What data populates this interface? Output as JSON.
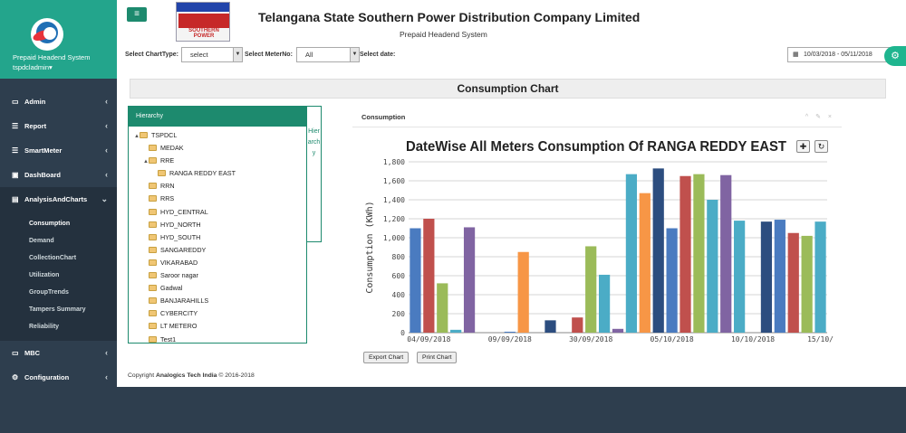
{
  "sidebar": {
    "system_name": "Prepaid Headend System",
    "user": "tspdcladmin",
    "menu": [
      {
        "label": "Admin",
        "icon": "monitor-icon"
      },
      {
        "label": "Report",
        "icon": "list-icon"
      },
      {
        "label": "SmartMeter",
        "icon": "list-icon"
      },
      {
        "label": "DashBoard",
        "icon": "dashboard-icon"
      },
      {
        "label": "AnalysisAndCharts",
        "icon": "bar-chart-icon"
      }
    ],
    "submenu": [
      "Consumption",
      "Demand",
      "CollectionChart",
      "Utilization",
      "GroupTrends",
      "Tampers Summary",
      "Reliability"
    ],
    "menu_after": [
      {
        "label": "MBC",
        "icon": "monitor-icon"
      },
      {
        "label": "Configuration",
        "icon": "gear-icon"
      }
    ]
  },
  "header": {
    "company": "Telangana State Southern Power Distribution Company Limited",
    "subtitle": "Prepaid Headend System",
    "logo_text": "SOUTHERN POWER"
  },
  "filters": {
    "chart_type_label": "Select ChartType:",
    "chart_type_value": "select",
    "meter_label": "Select MeterNo:",
    "meter_value": "All",
    "date_label": "Select date:",
    "date_value": "10/03/2018 - 05/11/2018"
  },
  "page_title": "Consumption Chart",
  "hierarchy": {
    "title": "Hierarchy",
    "tab_label": "Hierarchy",
    "nodes": [
      {
        "label": "TSPDCL",
        "level": 0,
        "toggle": "▲"
      },
      {
        "label": "MEDAK",
        "level": 1,
        "toggle": ""
      },
      {
        "label": "RRE",
        "level": 1,
        "toggle": "▲"
      },
      {
        "label": "RANGA REDDY EAST",
        "level": 2,
        "toggle": ""
      },
      {
        "label": "RRN",
        "level": 1,
        "toggle": ""
      },
      {
        "label": "RRS",
        "level": 1,
        "toggle": ""
      },
      {
        "label": "HYD_CENTRAL",
        "level": 1,
        "toggle": ""
      },
      {
        "label": "HYD_NORTH",
        "level": 1,
        "toggle": ""
      },
      {
        "label": "HYD_SOUTH",
        "level": 1,
        "toggle": ""
      },
      {
        "label": "SANGAREDDY",
        "level": 1,
        "toggle": ""
      },
      {
        "label": "VIKARABAD",
        "level": 1,
        "toggle": ""
      },
      {
        "label": "Saroor nagar",
        "level": 1,
        "toggle": ""
      },
      {
        "label": "Gadwal",
        "level": 1,
        "toggle": ""
      },
      {
        "label": "BANJARAHILLS",
        "level": 1,
        "toggle": ""
      },
      {
        "label": "CYBERCITY",
        "level": 1,
        "toggle": ""
      },
      {
        "label": "LT METERO",
        "level": 1,
        "toggle": ""
      },
      {
        "label": "Test1",
        "level": 1,
        "toggle": ""
      }
    ]
  },
  "chart_panel": {
    "heading": "Consumption",
    "tools": "^ ✎ ×",
    "export_label": "Export Chart",
    "print_label": "Print Chart"
  },
  "chart_data": {
    "type": "bar",
    "title": "DateWise All Meters Consumption Of RANGA REDDY EAST",
    "ylabel": "Consumption (KWh)",
    "xlabel": "",
    "ylim": [
      0,
      1800
    ],
    "yticks": [
      0,
      200,
      400,
      600,
      800,
      1000,
      1200,
      1400,
      1600,
      1800
    ],
    "xtick_labels": [
      "04/09/2018",
      "09/09/2018",
      "30/09/2018",
      "05/10/2018",
      "10/10/2018",
      "15/10/"
    ],
    "grid": true,
    "values": [
      1100,
      1200,
      520,
      30,
      1110,
      0,
      0,
      10,
      850,
      0,
      130,
      0,
      160,
      910,
      610,
      40,
      1670,
      1470,
      1730,
      1100,
      1650,
      1670,
      1400,
      1660,
      1180,
      0,
      1170,
      1190,
      1050,
      1020,
      1170
    ],
    "colors": [
      "#4a7bc0",
      "#c0504d",
      "#9bbb59",
      "#4bacc6",
      "#8064a2",
      "#f79646",
      "#2c4d7f",
      "#4a7bc0",
      "#f79646",
      "#9bbb59",
      "#2c4d7f",
      "#4bacc6",
      "#c0504d",
      "#9bbb59",
      "#4bacc6",
      "#8064a2",
      "#4bacc6",
      "#f79646",
      "#2c4d7f",
      "#4a7bc0",
      "#c0504d",
      "#9bbb59",
      "#4bacc6",
      "#8064a2",
      "#4bacc6",
      "#f79646",
      "#2c4d7f",
      "#4a7bc0",
      "#c0504d",
      "#9bbb59",
      "#4bacc6"
    ]
  },
  "footer": {
    "prefix": "Copyright",
    "company": "Analogics Tech India",
    "suffix": "© 2016-2018"
  }
}
